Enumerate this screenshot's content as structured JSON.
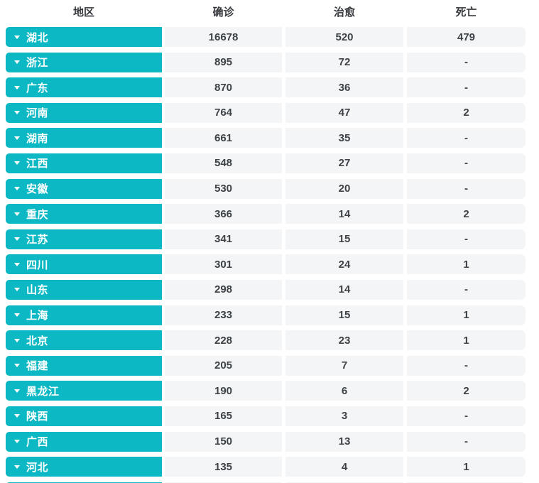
{
  "table": {
    "colors": {
      "accent": "#0cb8c4",
      "cell_bg": "#f4f5f7",
      "value_text": "#3d4247",
      "header_text": "#36393d",
      "region_text": "#ffffff"
    },
    "icons": {
      "row_caret": "caret-down-icon"
    },
    "headers": [
      {
        "key": "region",
        "label": "地区"
      },
      {
        "key": "confirmed",
        "label": "确诊"
      },
      {
        "key": "cured",
        "label": "治愈"
      },
      {
        "key": "deaths",
        "label": "死亡"
      }
    ],
    "rows": [
      {
        "region": "湖北",
        "confirmed": "16678",
        "cured": "520",
        "deaths": "479"
      },
      {
        "region": "浙江",
        "confirmed": "895",
        "cured": "72",
        "deaths": "-"
      },
      {
        "region": "广东",
        "confirmed": "870",
        "cured": "36",
        "deaths": "-"
      },
      {
        "region": "河南",
        "confirmed": "764",
        "cured": "47",
        "deaths": "2"
      },
      {
        "region": "湖南",
        "confirmed": "661",
        "cured": "35",
        "deaths": "-"
      },
      {
        "region": "江西",
        "confirmed": "548",
        "cured": "27",
        "deaths": "-"
      },
      {
        "region": "安徽",
        "confirmed": "530",
        "cured": "20",
        "deaths": "-"
      },
      {
        "region": "重庆",
        "confirmed": "366",
        "cured": "14",
        "deaths": "2"
      },
      {
        "region": "江苏",
        "confirmed": "341",
        "cured": "15",
        "deaths": "-"
      },
      {
        "region": "四川",
        "confirmed": "301",
        "cured": "24",
        "deaths": "1"
      },
      {
        "region": "山东",
        "confirmed": "298",
        "cured": "14",
        "deaths": "-"
      },
      {
        "region": "上海",
        "confirmed": "233",
        "cured": "15",
        "deaths": "1"
      },
      {
        "region": "北京",
        "confirmed": "228",
        "cured": "23",
        "deaths": "1"
      },
      {
        "region": "福建",
        "confirmed": "205",
        "cured": "7",
        "deaths": "-"
      },
      {
        "region": "黑龙江",
        "confirmed": "190",
        "cured": "6",
        "deaths": "2"
      },
      {
        "region": "陕西",
        "confirmed": "165",
        "cured": "3",
        "deaths": "-"
      },
      {
        "region": "广西",
        "confirmed": "150",
        "cured": "13",
        "deaths": "-"
      },
      {
        "region": "河北",
        "confirmed": "135",
        "cured": "4",
        "deaths": "1"
      },
      {
        "region": "",
        "confirmed": "",
        "cured": "",
        "deaths": "",
        "partial": true
      }
    ]
  }
}
